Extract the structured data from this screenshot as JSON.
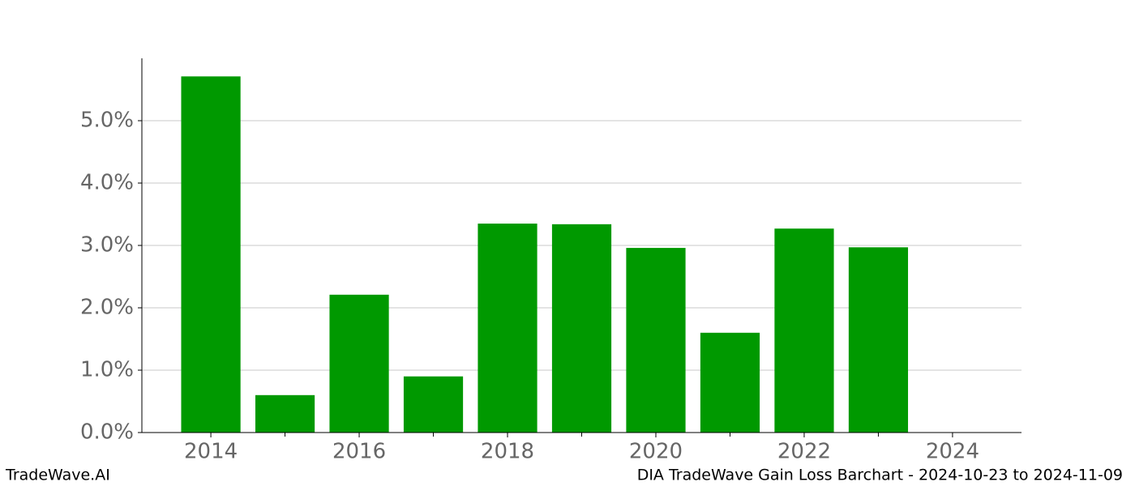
{
  "chart_data": {
    "type": "bar",
    "title": "DIA TradeWave Gain Loss Barchart - 2024-10-23 to 2024-11-09",
    "source": "TradeWave.AI",
    "x": [
      2014,
      2015,
      2016,
      2017,
      2018,
      2019,
      2020,
      2021,
      2022,
      2023
    ],
    "values": [
      5.71,
      0.6,
      2.21,
      0.9,
      3.35,
      3.34,
      2.96,
      1.6,
      3.27,
      2.97
    ],
    "color": "#009900",
    "xlim": [
      2013.07,
      2024.93
    ],
    "xticks": [
      2014,
      2016,
      2018,
      2020,
      2022,
      2024
    ],
    "xminorticks": [
      2015,
      2017,
      2019,
      2021,
      2023
    ],
    "ylim": [
      0,
      6.0
    ],
    "yticks": [
      {
        "value": 0,
        "label": "0.0%"
      },
      {
        "value": 1,
        "label": "1.0%"
      },
      {
        "value": 2,
        "label": "2.0%"
      },
      {
        "value": 3,
        "label": "3.0%"
      },
      {
        "value": 4,
        "label": "4.0%"
      },
      {
        "value": 5,
        "label": "5.0%"
      }
    ],
    "grid": true
  }
}
